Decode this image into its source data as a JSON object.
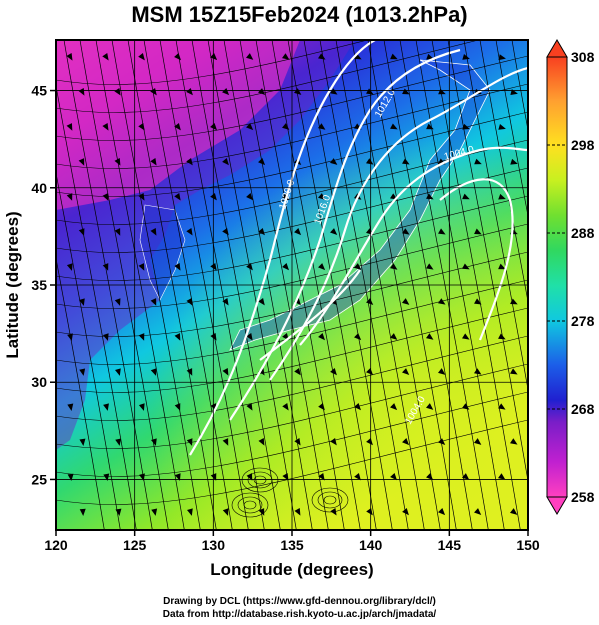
{
  "title": "MSM 15Z15Feb2024 (1013.2hPa)",
  "x_axis": {
    "label": "Longitude (degrees)",
    "range": [
      120,
      150
    ],
    "ticks": [
      "120",
      "125",
      "130",
      "135",
      "140",
      "145",
      "150"
    ]
  },
  "y_axis": {
    "label": "Latitude (degrees)",
    "range": [
      22.4,
      47.6
    ],
    "ticks": [
      "25",
      "30",
      "35",
      "40",
      "45"
    ]
  },
  "colorbar": {
    "min": 258,
    "max": 308,
    "ticks": [
      "258",
      "268",
      "278",
      "288",
      "298",
      "308"
    ],
    "colors": [
      "#ff40c0",
      "#c020d0",
      "#7a1ec8",
      "#2020d0",
      "#1c5ee8",
      "#10c8e0",
      "#20e0a8",
      "#30d860",
      "#70e030",
      "#c8f020",
      "#ffe020",
      "#ffa030",
      "#f84020"
    ]
  },
  "isobars": [
    {
      "label": "1020.0"
    },
    {
      "label": "1016.0"
    },
    {
      "label": "1012.0"
    },
    {
      "label": "1004.0"
    },
    {
      "label": "1004.0"
    }
  ],
  "credits": [
    "Drawing by DCL (https://www.gfd-dennou.org/library/dcl/)",
    "Data from http://database.rish.kyoto-u.ac.jp/arch/jmadata/"
  ]
}
